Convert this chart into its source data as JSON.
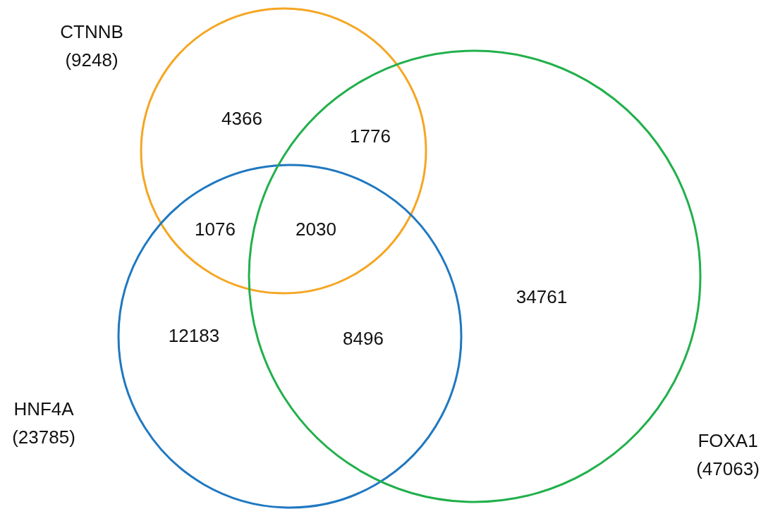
{
  "chart_data": {
    "type": "other",
    "categories": [
      "CTNNB",
      "HNF4A",
      "FOXA1"
    ],
    "values": [
      9248,
      23785,
      47063
    ],
    "value_labels": [
      "(9248)",
      "(23785)",
      "(47063)"
    ],
    "colors": [
      "#f5a623",
      "#1f78c1",
      "#21b04b"
    ],
    "annotations": [
      "4366",
      "1776",
      "1076",
      "2030",
      "12183",
      "8496",
      "34761"
    ]
  }
}
